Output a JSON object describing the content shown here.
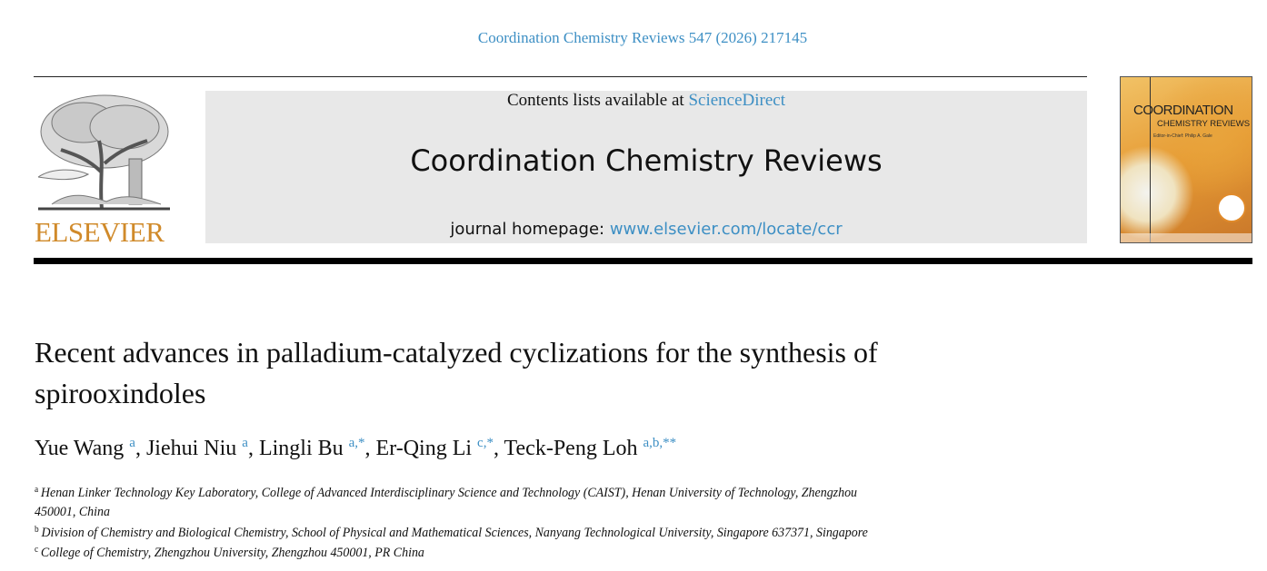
{
  "citation": "Coordination Chemistry Reviews 547 (2026) 217145",
  "publisher_logo": {
    "text": "ELSEVIER",
    "motto": "NON SOLUS"
  },
  "banner": {
    "contents_prefix": "Contents lists available at ",
    "contents_link": "ScienceDirect",
    "journal_title": "Coordination Chemistry Reviews",
    "homepage_prefix": "journal homepage: ",
    "homepage_link": "www.elsevier.com/locate/ccr"
  },
  "cover": {
    "title_line1": "COORDINATION",
    "title_line2": "CHEMISTRY REVIEWS",
    "editor": "Editor-in-Chief: Philip A. Gale"
  },
  "article": {
    "title": "Recent advances in palladium-catalyzed cyclizations for the synthesis of spirooxindoles",
    "authors": [
      {
        "name": "Yue Wang",
        "sup": "a"
      },
      {
        "name": "Jiehui Niu",
        "sup": "a"
      },
      {
        "name": "Lingli Bu",
        "sup": "a,*"
      },
      {
        "name": "Er-Qing Li",
        "sup": "c,*"
      },
      {
        "name": "Teck-Peng Loh",
        "sup": "a,b,**"
      }
    ],
    "affiliations": [
      {
        "label": "a",
        "line1": "Henan Linker Technology Key Laboratory, College of Advanced Interdisciplinary Science and Technology (CAIST), Henan University of Technology, Zhengzhou",
        "line2": "450001, China"
      },
      {
        "label": "b",
        "line1": "Division of Chemistry and Biological Chemistry, School of Physical and Mathematical Sciences, Nanyang Technological University, Singapore 637371, Singapore"
      },
      {
        "label": "c",
        "line1": "College of Chemistry, Zhengzhou University, Zhengzhou 450001, PR China"
      }
    ]
  },
  "colors": {
    "link": "#3d8fc4",
    "elsevier_orange": "#d08a2a",
    "banner_bg": "#e8e8e8"
  }
}
